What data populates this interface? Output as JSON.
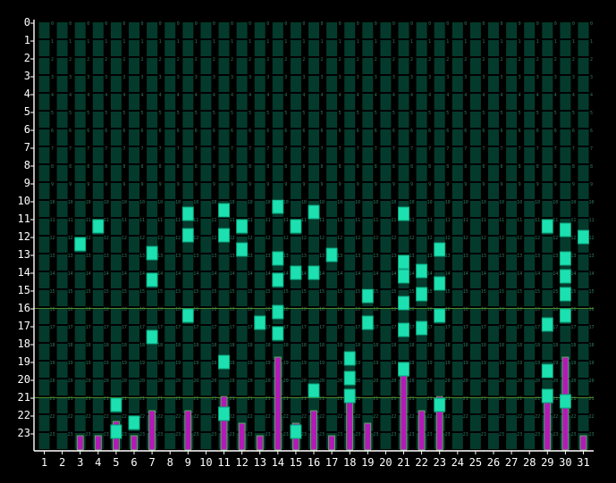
{
  "chart_data": {
    "type": "heatmap",
    "title": "",
    "xlabel": "",
    "ylabel": "",
    "x": [
      1,
      2,
      3,
      4,
      5,
      6,
      7,
      8,
      9,
      10,
      11,
      12,
      13,
      14,
      15,
      16,
      17,
      18,
      19,
      20,
      21,
      22,
      23,
      24,
      25,
      26,
      27,
      28,
      29,
      30,
      31
    ],
    "y": [
      0,
      1,
      2,
      3,
      4,
      5,
      6,
      7,
      8,
      9,
      10,
      11,
      12,
      13,
      14,
      15,
      16,
      17,
      18,
      19,
      20,
      21,
      22,
      23
    ],
    "xlim": [
      1,
      31
    ],
    "ylim": [
      0,
      23
    ],
    "grid": true,
    "reference_lines_y": [
      16,
      21
    ],
    "active_cells": [
      {
        "day": 3,
        "hours": [
          12
        ]
      },
      {
        "day": 4,
        "hours": [
          11
        ]
      },
      {
        "day": 5,
        "hours": [
          21,
          22.5
        ]
      },
      {
        "day": 6,
        "hours": [
          22
        ]
      },
      {
        "day": 7,
        "hours": [
          12.5,
          14,
          17.2
        ]
      },
      {
        "day": 9,
        "hours": [
          10.3,
          11.5,
          16
        ]
      },
      {
        "day": 11,
        "hours": [
          10.1,
          11.5,
          18.6,
          21.5
        ]
      },
      {
        "day": 12,
        "hours": [
          11,
          12.3
        ]
      },
      {
        "day": 13,
        "hours": [
          16.4
        ]
      },
      {
        "day": 14,
        "hours": [
          9.9,
          12.8,
          14,
          15.8,
          17
        ]
      },
      {
        "day": 15,
        "hours": [
          11,
          13.6,
          22.5
        ]
      },
      {
        "day": 16,
        "hours": [
          10.2,
          13.6,
          20.2
        ]
      },
      {
        "day": 17,
        "hours": [
          12.6
        ]
      },
      {
        "day": 18,
        "hours": [
          18.4,
          19.5,
          20.5
        ]
      },
      {
        "day": 19,
        "hours": [
          14.9,
          16.4
        ]
      },
      {
        "day": 21,
        "hours": [
          10.3,
          13,
          13.8,
          15.3,
          16.8,
          19
        ]
      },
      {
        "day": 22,
        "hours": [
          13.5,
          14.8,
          16.7
        ]
      },
      {
        "day": 23,
        "hours": [
          12.3,
          14.2,
          16,
          21
        ]
      },
      {
        "day": 29,
        "hours": [
          11,
          16.5,
          19.1,
          20.5
        ]
      },
      {
        "day": 30,
        "hours": [
          11.2,
          12.8,
          13.8,
          14.8,
          16,
          20.8
        ]
      },
      {
        "day": 31,
        "hours": [
          11.6
        ]
      }
    ],
    "bars": [
      {
        "day": 3,
        "start_hour": 23.2
      },
      {
        "day": 4,
        "start_hour": 23.2
      },
      {
        "day": 5,
        "start_hour": 22.4
      },
      {
        "day": 6,
        "start_hour": 23.2
      },
      {
        "day": 7,
        "start_hour": 21.8
      },
      {
        "day": 9,
        "start_hour": 21.8
      },
      {
        "day": 11,
        "start_hour": 21
      },
      {
        "day": 12,
        "start_hour": 22.5
      },
      {
        "day": 13,
        "start_hour": 23.2
      },
      {
        "day": 14,
        "start_hour": 18.8
      },
      {
        "day": 15,
        "start_hour": 22.5
      },
      {
        "day": 16,
        "start_hour": 21.8
      },
      {
        "day": 17,
        "start_hour": 23.2
      },
      {
        "day": 18,
        "start_hour": 21
      },
      {
        "day": 19,
        "start_hour": 22.5
      },
      {
        "day": 21,
        "start_hour": 19.5
      },
      {
        "day": 22,
        "start_hour": 21.8
      },
      {
        "day": 23,
        "start_hour": 21
      },
      {
        "day": 29,
        "start_hour": 21
      },
      {
        "day": 30,
        "start_hour": 18.8
      },
      {
        "day": 31,
        "start_hour": 23.2
      }
    ],
    "colors": {
      "background": "#000000",
      "cell": "#043a2c",
      "cell_text": "#2c7a5f",
      "active": "#1de0b0",
      "active_edge": "#0aa67e",
      "bar": "#b21ab8",
      "bar_edge": "#5ec45c",
      "axis": "#ffffff",
      "reference_line": "#4c8a2a"
    }
  }
}
